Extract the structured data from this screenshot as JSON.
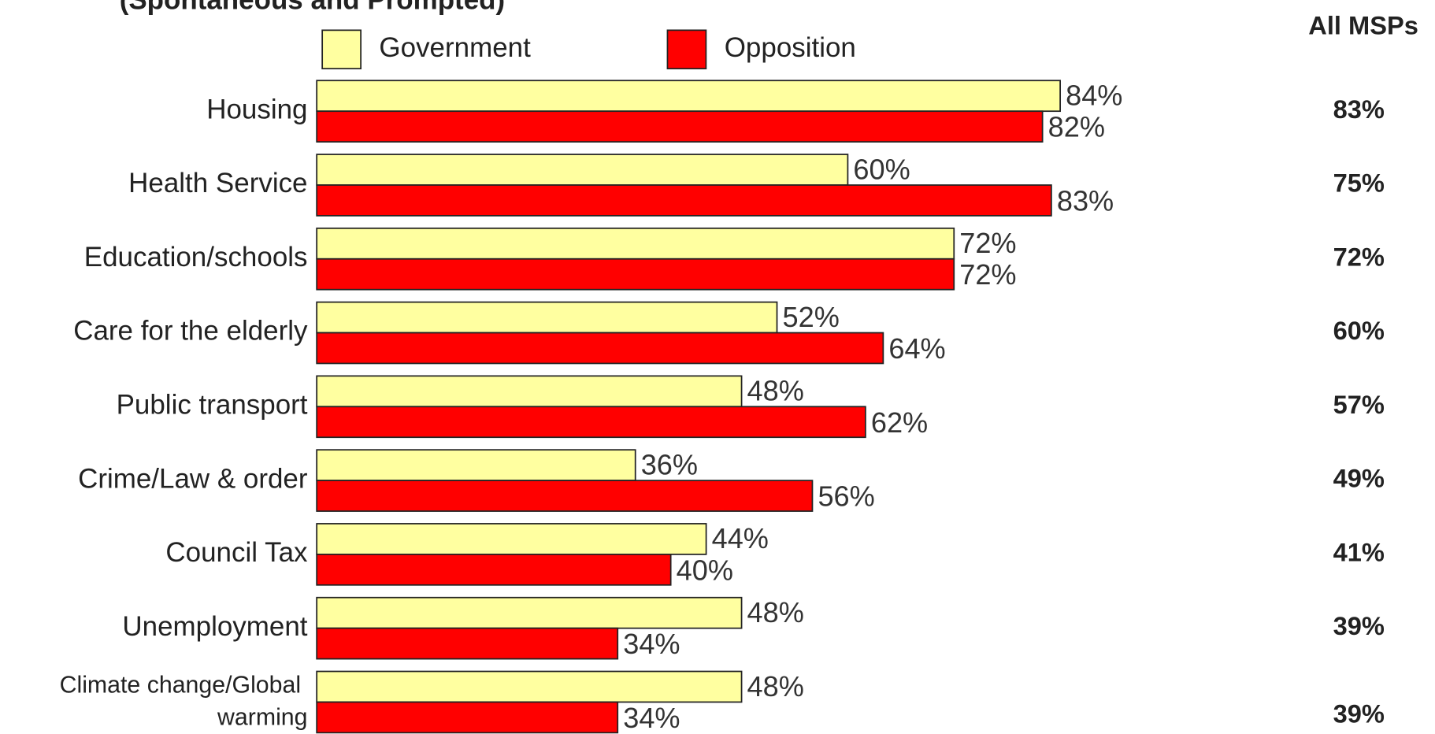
{
  "chart_data": {
    "type": "bar",
    "orientation": "horizontal",
    "title": "(Spontaneous and Prompted)",
    "categories": [
      "Housing",
      "Health Service",
      "Education/schools",
      "Care for the elderly",
      "Public transport",
      "Crime/Law & order",
      "Council Tax",
      "Unemployment",
      "Climate change/Global warming"
    ],
    "series": [
      {
        "name": "Government",
        "color": "#ffffa0",
        "values": [
          84,
          60,
          72,
          52,
          48,
          36,
          44,
          48,
          48
        ],
        "value_labels": [
          "84%",
          "60%",
          "72%",
          "52%",
          "48%",
          "36%",
          "44%",
          "48%",
          "48%"
        ]
      },
      {
        "name": "Opposition",
        "color": "#ff0000",
        "values": [
          82,
          83,
          72,
          64,
          62,
          56,
          40,
          34,
          34
        ],
        "value_labels": [
          "82%",
          "83%",
          "72%",
          "64%",
          "62%",
          "56%",
          "40%",
          "34%",
          "34%"
        ]
      }
    ],
    "all_msps": {
      "label": "All MSPs",
      "values": [
        83,
        75,
        72,
        60,
        57,
        49,
        41,
        39,
        39
      ],
      "value_labels": [
        "83%",
        "75%",
        "72%",
        "60%",
        "57%",
        "49%",
        "41%",
        "39%",
        "39%"
      ]
    },
    "xlim": [
      0,
      100
    ]
  }
}
